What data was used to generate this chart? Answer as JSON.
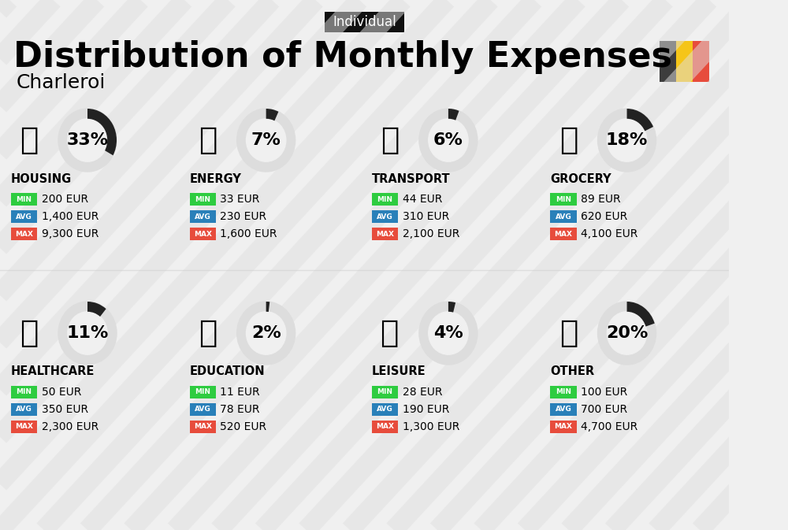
{
  "title": "Distribution of Monthly Expenses",
  "subtitle": "Charleroi",
  "tag": "Individual",
  "bg_color": "#f0f0f0",
  "title_fontsize": 32,
  "subtitle_fontsize": 18,
  "tag_fontsize": 12,
  "categories_row1": [
    "HOUSING",
    "ENERGY",
    "TRANSPORT",
    "GROCERY"
  ],
  "categories_row2": [
    "HEALTHCARE",
    "EDUCATION",
    "LEISURE",
    "OTHER"
  ],
  "percentages_row1": [
    "33%",
    "7%",
    "6%",
    "18%"
  ],
  "percentages_row2": [
    "11%",
    "2%",
    "4%",
    "20%"
  ],
  "pct_values_row1": [
    33,
    7,
    6,
    18
  ],
  "pct_values_row2": [
    11,
    2,
    4,
    20
  ],
  "data_row1": [
    {
      "min": "200 EUR",
      "avg": "1,400 EUR",
      "max": "9,300 EUR"
    },
    {
      "min": "33 EUR",
      "avg": "230 EUR",
      "max": "1,600 EUR"
    },
    {
      "min": "44 EUR",
      "avg": "310 EUR",
      "max": "2,100 EUR"
    },
    {
      "min": "89 EUR",
      "avg": "620 EUR",
      "max": "4,100 EUR"
    }
  ],
  "data_row2": [
    {
      "min": "50 EUR",
      "avg": "350 EUR",
      "max": "2,300 EUR"
    },
    {
      "min": "11 EUR",
      "avg": "78 EUR",
      "max": "520 EUR"
    },
    {
      "min": "28 EUR",
      "avg": "190 EUR",
      "max": "1,300 EUR"
    },
    {
      "min": "100 EUR",
      "avg": "700 EUR",
      "max": "4,700 EUR"
    }
  ],
  "color_min": "#2ecc40",
  "color_avg": "#2980b9",
  "color_max": "#e74c3c",
  "color_label_min": "#ffffff",
  "color_label_avg": "#ffffff",
  "color_label_max": "#ffffff",
  "circle_color": "#cccccc",
  "circle_filled_color": "#333333",
  "flag_colors": [
    "#3d3d3d",
    "#f5c518",
    "#e74c3c"
  ],
  "stripe_color": "#e0e0e0"
}
